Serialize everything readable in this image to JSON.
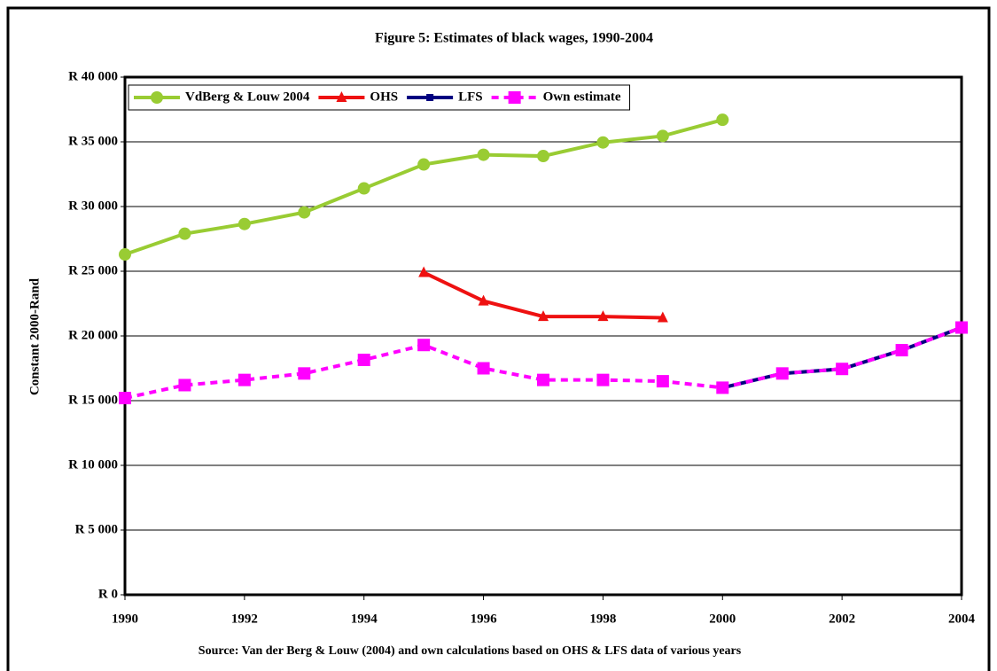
{
  "chart_data": {
    "type": "line",
    "title": "Figure 5: Estimates of black wages, 1990-2004",
    "y_label": "Constant 2000-Rand",
    "source": "Source: Van der Berg & Louw (2004) and own calculations based on OHS & LFS data of various years",
    "x": [
      1990,
      1991,
      1992,
      1993,
      1994,
      1995,
      1996,
      1997,
      1998,
      1999,
      2000,
      2001,
      2002,
      2003,
      2004
    ],
    "xlim": [
      1990,
      2004
    ],
    "xticks": [
      1990,
      1992,
      1994,
      1996,
      1998,
      2000,
      2002,
      2004
    ],
    "ylim": [
      0,
      40000
    ],
    "yticks": [
      {
        "value": 0,
        "label": "R 0"
      },
      {
        "value": 5000,
        "label": "R 5 000"
      },
      {
        "value": 10000,
        "label": "R 10 000"
      },
      {
        "value": 15000,
        "label": "R 15 000"
      },
      {
        "value": 20000,
        "label": "R 20 000"
      },
      {
        "value": 25000,
        "label": "R 25 000"
      },
      {
        "value": 30000,
        "label": "R 30 000"
      },
      {
        "value": 35000,
        "label": "R 35 000"
      },
      {
        "value": 40000,
        "label": "R 40 000"
      }
    ],
    "grid": true,
    "legend": "top-left",
    "series": [
      {
        "name": "VdBerg & Louw 2004",
        "color": "#99cc33",
        "marker": "circle",
        "dashed": false,
        "values": [
          26300,
          27900,
          28650,
          29550,
          31400,
          33250,
          34000,
          33900,
          34950,
          35450,
          36700,
          null,
          null,
          null,
          null
        ]
      },
      {
        "name": "OHS",
        "color": "#ee1111",
        "marker": "triangle",
        "dashed": false,
        "values": [
          null,
          null,
          null,
          null,
          null,
          24900,
          22700,
          21500,
          21500,
          21400,
          null,
          null,
          null,
          null,
          null
        ]
      },
      {
        "name": "LFS",
        "color": "#000080",
        "marker": "square-small",
        "dashed": false,
        "values": [
          null,
          null,
          null,
          null,
          null,
          null,
          null,
          null,
          null,
          null,
          16000,
          17100,
          17450,
          18900,
          20650
        ]
      },
      {
        "name": "Own estimate",
        "color": "#ff00ff",
        "marker": "square",
        "dashed": true,
        "values": [
          15200,
          16200,
          16600,
          17100,
          18150,
          19300,
          17500,
          16600,
          16600,
          16500,
          16000,
          17100,
          17450,
          18900,
          20650
        ]
      }
    ]
  }
}
